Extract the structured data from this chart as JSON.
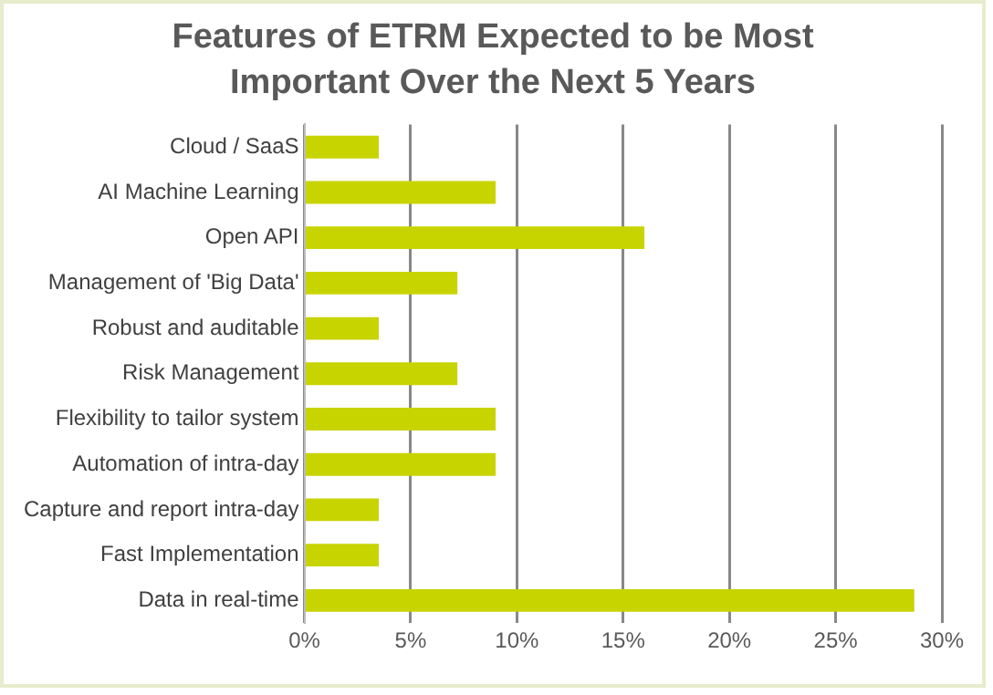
{
  "chart_data": {
    "type": "bar",
    "orientation": "horizontal",
    "title": "Features of ETRM Expected to be Most Important Over the Next 5 Years",
    "categories": [
      "Cloud / SaaS",
      "AI Machine Learning",
      "Open API",
      "Management of 'Big Data'",
      "Robust and auditable",
      "Risk Management",
      "Flexibility to tailor system",
      "Automation of intra-day",
      "Capture and report intra-day",
      "Fast Implementation",
      "Data in real-time"
    ],
    "values": [
      3.5,
      9,
      16,
      7.2,
      3.5,
      7.2,
      9,
      9,
      3.5,
      3.5,
      28.7
    ],
    "color": "#c8d400",
    "xlim": [
      0,
      30
    ],
    "xticks": [
      {
        "value": 0,
        "label": "0%"
      },
      {
        "value": 5,
        "label": "5%"
      },
      {
        "value": 10,
        "label": "10%"
      },
      {
        "value": 15,
        "label": "15%"
      },
      {
        "value": 20,
        "label": "20%"
      },
      {
        "value": 25,
        "label": "25%"
      },
      {
        "value": 30,
        "label": "30%"
      }
    ],
    "grid": "x",
    "legend": false
  }
}
